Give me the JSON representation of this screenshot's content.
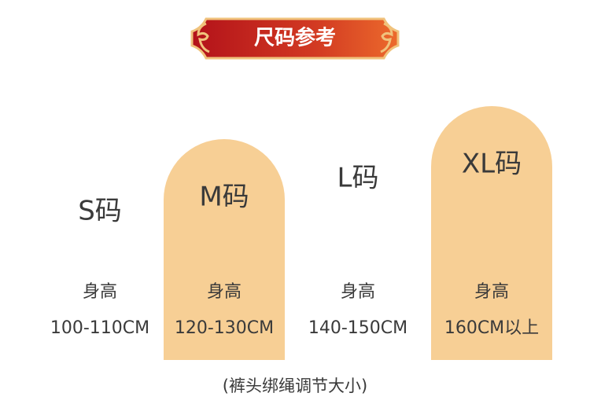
{
  "header": {
    "title": "尺码参考"
  },
  "sizes": [
    {
      "label": "S码",
      "height_title": "身高",
      "height": "100-110CM",
      "highlight": false
    },
    {
      "label": "M码",
      "height_title": "身高",
      "height": "120-130CM",
      "highlight": true
    },
    {
      "label": "L码",
      "height_title": "身高",
      "height": "140-150CM",
      "highlight": false
    },
    {
      "label": "XL码",
      "height_title": "身高",
      "height": "160CM以上",
      "highlight": true
    }
  ],
  "note": "(裤头绑绳调节大小)"
}
